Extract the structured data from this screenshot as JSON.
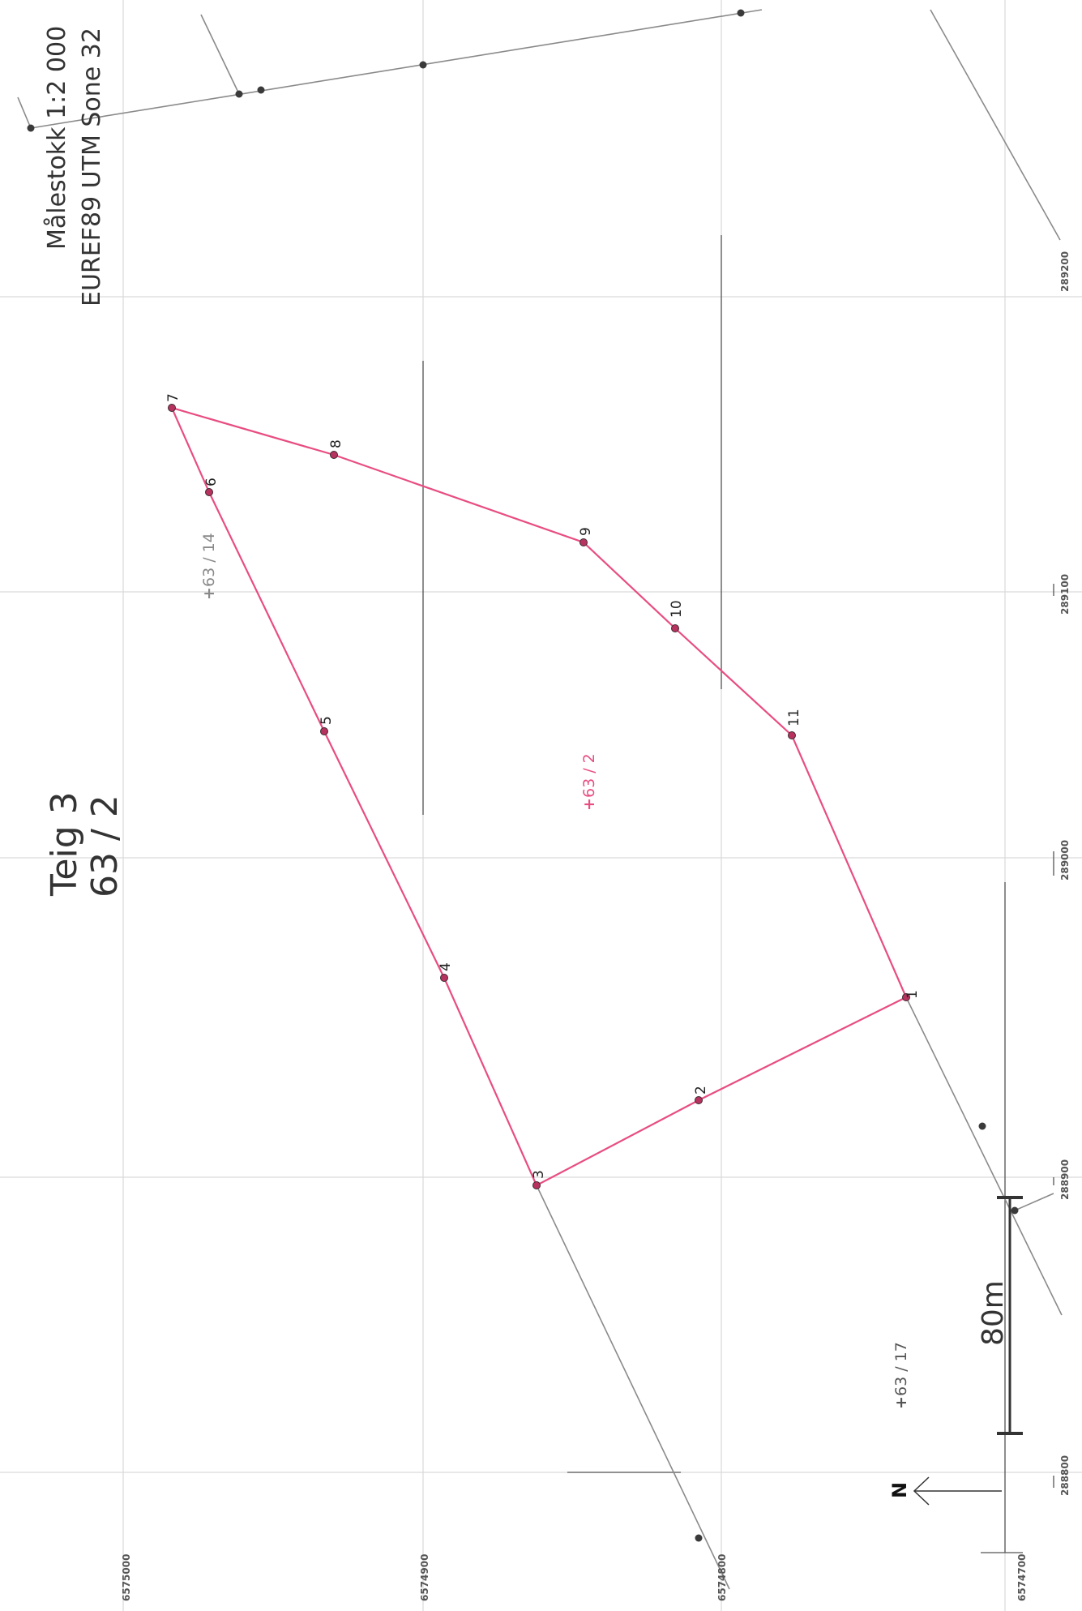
{
  "title": {
    "line1": "Teig 3",
    "line2": "63 / 2"
  },
  "info": {
    "scale": "Målestokk 1:2 000",
    "crs": "EUREF89 UTM Sone 32"
  },
  "scale_bar": {
    "label": "80m"
  },
  "north_arrow": {
    "label": "N"
  },
  "easting_labels": [
    "288800",
    "288900",
    "289000",
    "289100",
    "289200"
  ],
  "northing_labels": [
    "6574700",
    "6574800",
    "6574900",
    "6575000"
  ],
  "parcel_labels": {
    "main": "63 / 2",
    "north": "63 / 14",
    "south": "63 / 17"
  },
  "boundary_points": [
    "1",
    "2",
    "3",
    "4",
    "5",
    "6",
    "7",
    "8",
    "9",
    "10",
    "11"
  ],
  "colors": {
    "boundary": "#e84d82",
    "main_parcel_label": "#e84d82",
    "neighbor_parcel_label": "#8a8a8a",
    "grid": "#d9d9d9"
  }
}
